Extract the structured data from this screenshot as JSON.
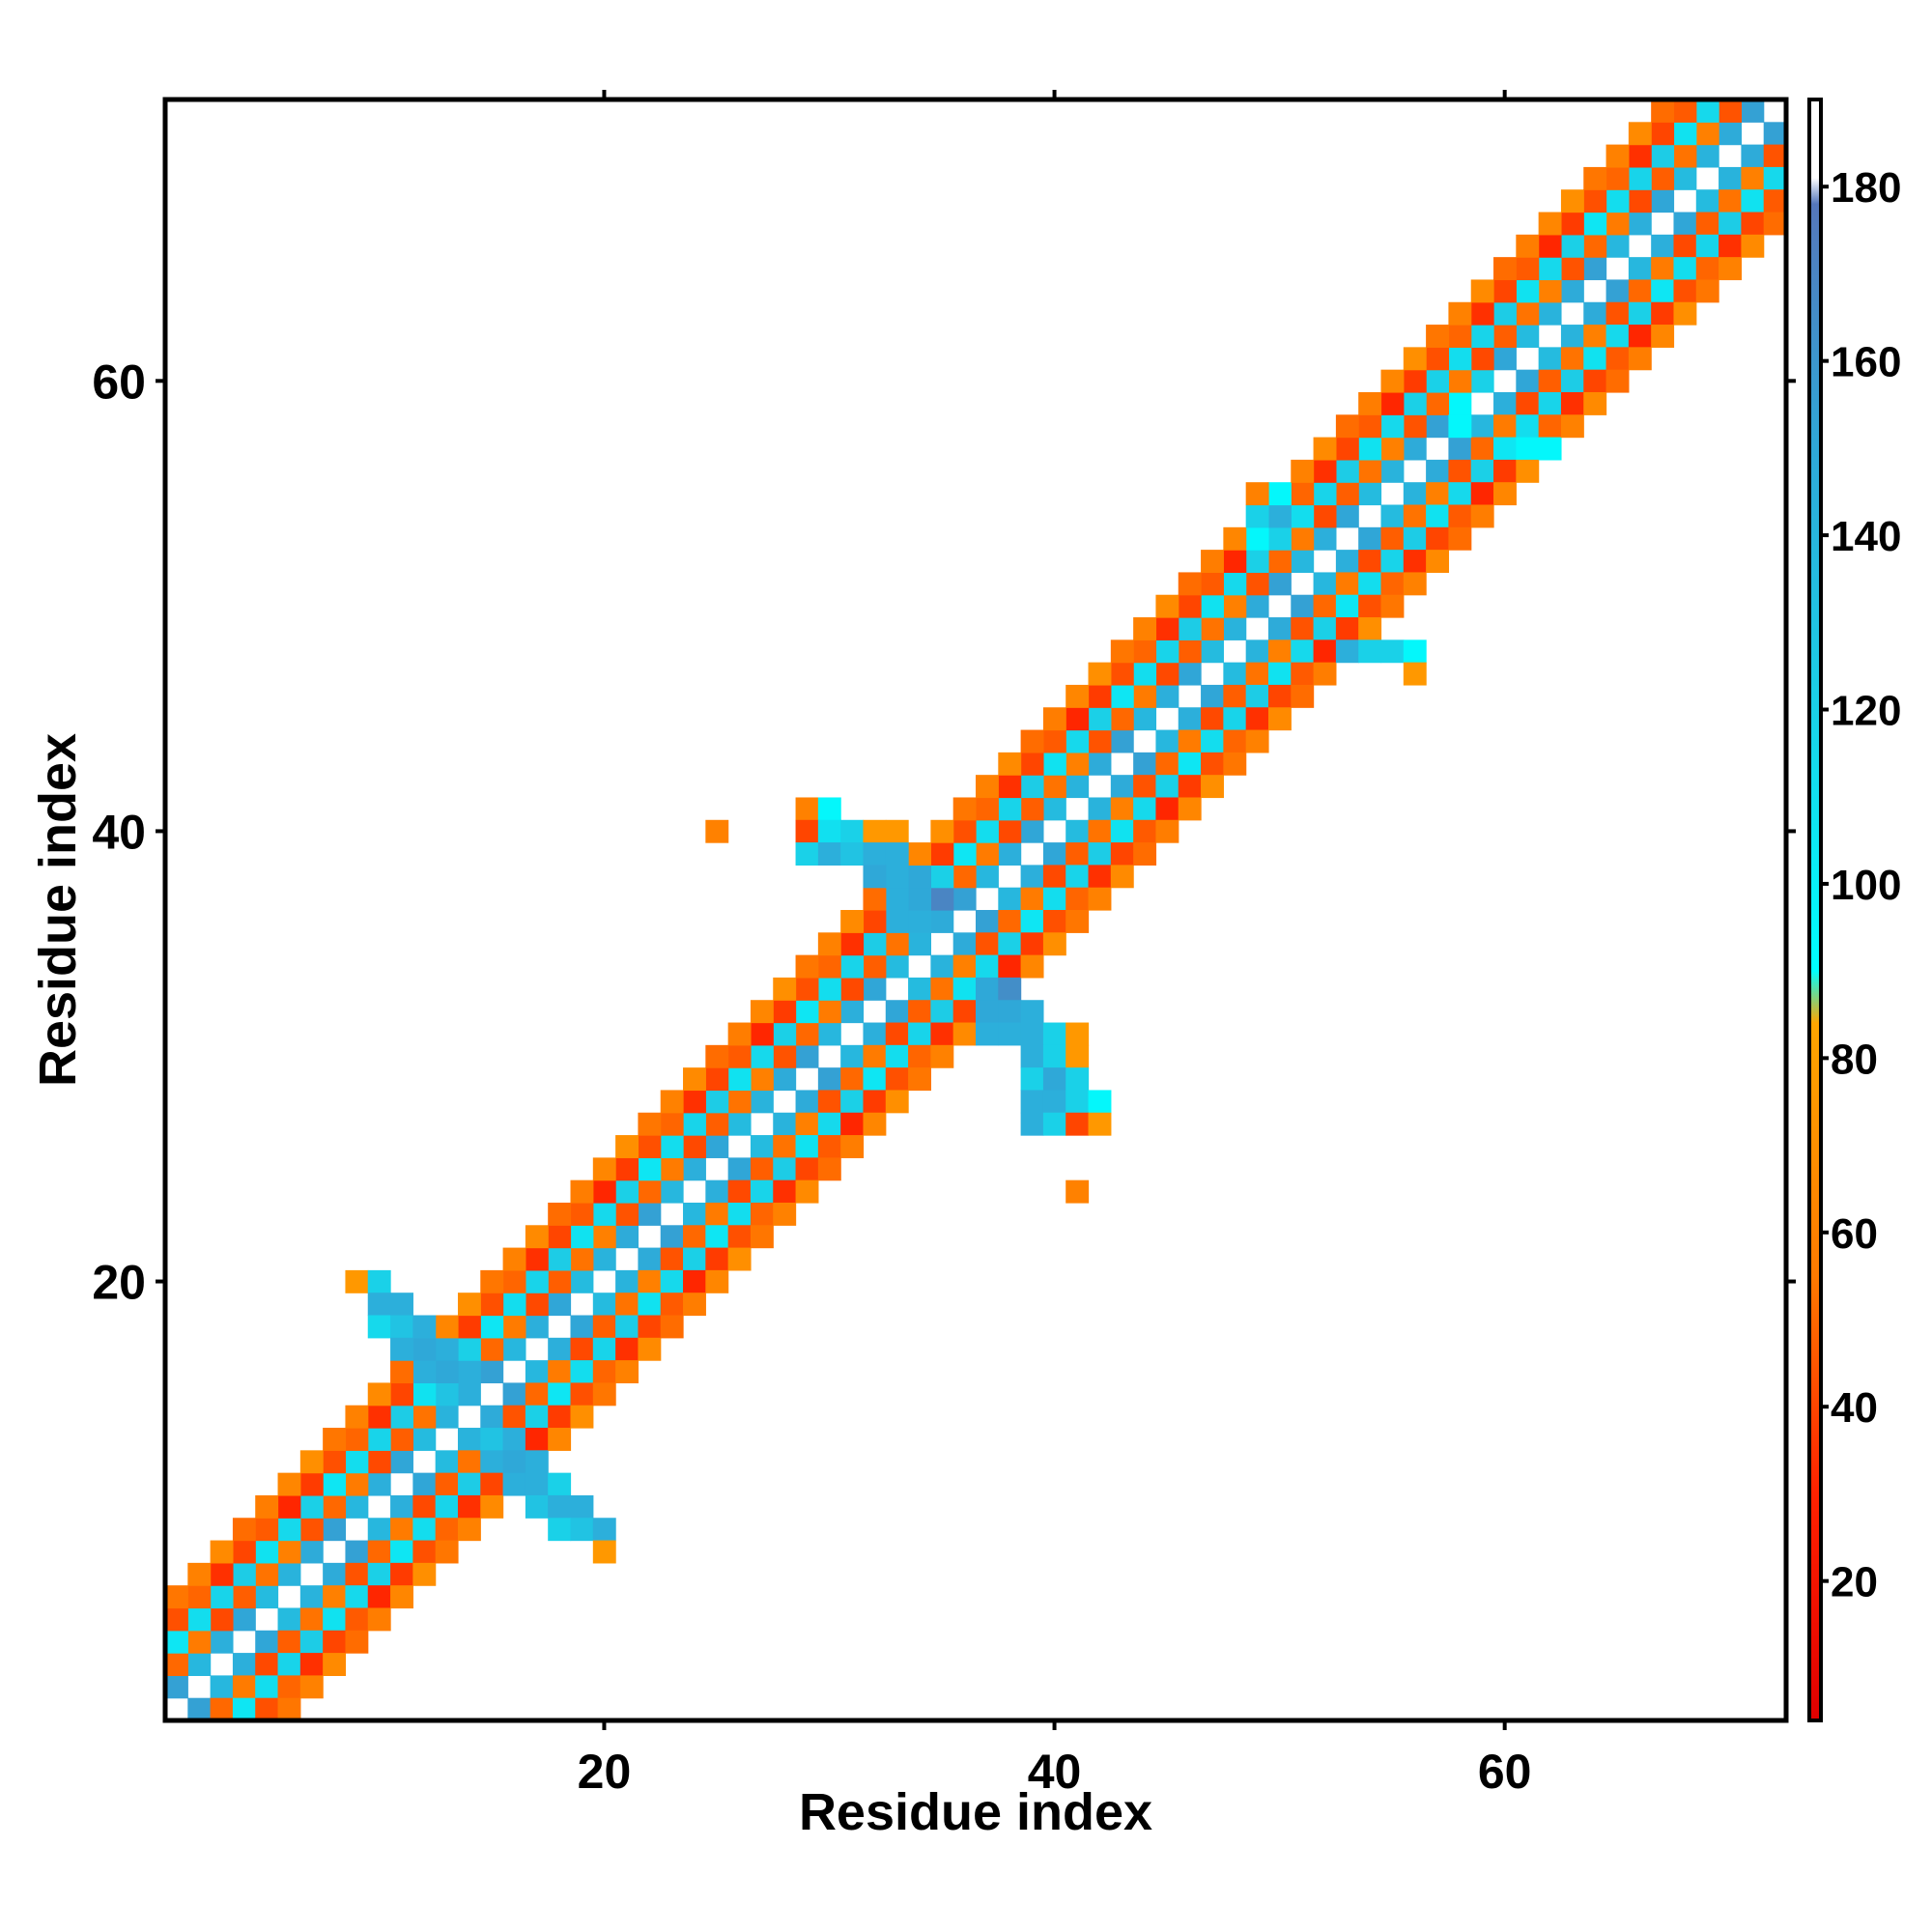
{
  "chart_data": {
    "type": "heatmap",
    "title": "",
    "xlabel": "Residue index",
    "ylabel": "Residue index",
    "xlim": [
      0.5,
      72.5
    ],
    "ylim": [
      0.5,
      72.5
    ],
    "x_ticks": [
      20,
      40,
      60
    ],
    "y_ticks": [
      20,
      40,
      60
    ],
    "x_tick_labels": [
      "20",
      "40",
      "60"
    ],
    "y_tick_labels": [
      "20",
      "40",
      "60"
    ],
    "grid": false,
    "colorbar": {
      "range": [
        4,
        190
      ],
      "ticks": [
        20,
        40,
        60,
        80,
        100,
        120,
        140,
        160,
        180
      ],
      "tick_labels": [
        "20",
        "40",
        "60",
        "80",
        "100",
        "120",
        "140",
        "160",
        "180"
      ],
      "stops": [
        {
          "value": 4,
          "color": "#e00000"
        },
        {
          "value": 30,
          "color": "#ff2200"
        },
        {
          "value": 55,
          "color": "#ff7a00"
        },
        {
          "value": 84,
          "color": "#ffa500"
        },
        {
          "value": 90,
          "color": "#00ffff"
        },
        {
          "value": 120,
          "color": "#1ad1e8"
        },
        {
          "value": 150,
          "color": "#2fa8d8"
        },
        {
          "value": 178,
          "color": "#5577bb"
        },
        {
          "value": 181,
          "color": "#ffffff"
        },
        {
          "value": 190,
          "color": "#ffffff"
        }
      ]
    },
    "color_scale": {
      "red": "#ff1a00",
      "orange": "#ff7f00",
      "amber": "#ffa000",
      "cyan": "#14f0f5",
      "sky": "#1ccfe6",
      "blue": "#3ab0dc",
      "steel": "#5090cc"
    },
    "diagonal_bands": [
      {
        "from": 1,
        "to": 72,
        "offset": 1,
        "value": 145,
        "class": "cyan"
      },
      {
        "from": 1,
        "to": 72,
        "offset": 2,
        "value": 50,
        "class": "orange"
      },
      {
        "from": 1,
        "to": 72,
        "offset": 3,
        "value": 115,
        "class": "sky"
      },
      {
        "from": 1,
        "to": 72,
        "offset": 4,
        "value": 40,
        "class": "red"
      },
      {
        "from": 1,
        "to": 72,
        "offset": 5,
        "value": 60,
        "class": "orange"
      }
    ],
    "cells": [
      {
        "x": 9,
        "y": 20,
        "v": 75
      },
      {
        "x": 10,
        "y": 20,
        "v": 120
      },
      {
        "x": 10,
        "y": 19,
        "v": 145
      },
      {
        "x": 11,
        "y": 19,
        "v": 145
      },
      {
        "x": 10,
        "y": 18,
        "v": 115
      },
      {
        "x": 11,
        "y": 18,
        "v": 130
      },
      {
        "x": 12,
        "y": 18,
        "v": 145
      },
      {
        "x": 11,
        "y": 17,
        "v": 145
      },
      {
        "x": 12,
        "y": 17,
        "v": 150
      },
      {
        "x": 13,
        "y": 17,
        "v": 145
      },
      {
        "x": 12,
        "y": 16,
        "v": 145
      },
      {
        "x": 13,
        "y": 16,
        "v": 150
      },
      {
        "x": 14,
        "y": 16,
        "v": 145
      },
      {
        "x": 13,
        "y": 15,
        "v": 130
      },
      {
        "x": 14,
        "y": 15,
        "v": 145
      },
      {
        "x": 15,
        "y": 13,
        "v": 130
      },
      {
        "x": 16,
        "y": 13,
        "v": 145
      },
      {
        "x": 15,
        "y": 12,
        "v": 145
      },
      {
        "x": 16,
        "y": 12,
        "v": 150
      },
      {
        "x": 17,
        "y": 12,
        "v": 145
      },
      {
        "x": 16,
        "y": 11,
        "v": 145
      },
      {
        "x": 17,
        "y": 11,
        "v": 145
      },
      {
        "x": 18,
        "y": 11,
        "v": 120
      },
      {
        "x": 17,
        "y": 10,
        "v": 130
      },
      {
        "x": 18,
        "y": 10,
        "v": 145
      },
      {
        "x": 19,
        "y": 10,
        "v": 145
      },
      {
        "x": 18,
        "y": 9,
        "v": 120
      },
      {
        "x": 19,
        "y": 9,
        "v": 130
      },
      {
        "x": 20,
        "y": 9,
        "v": 145
      },
      {
        "x": 20,
        "y": 8,
        "v": 75
      },
      {
        "x": 29,
        "y": 41,
        "v": 60
      },
      {
        "x": 30,
        "y": 41,
        "v": 95
      },
      {
        "x": 29,
        "y": 40,
        "v": 40
      },
      {
        "x": 30,
        "y": 40,
        "v": 110
      },
      {
        "x": 31,
        "y": 40,
        "v": 120
      },
      {
        "x": 32,
        "y": 40,
        "v": 75
      },
      {
        "x": 33,
        "y": 40,
        "v": 75
      },
      {
        "x": 29,
        "y": 39,
        "v": 120
      },
      {
        "x": 30,
        "y": 39,
        "v": 145
      },
      {
        "x": 31,
        "y": 39,
        "v": 130
      },
      {
        "x": 32,
        "y": 39,
        "v": 145
      },
      {
        "x": 33,
        "y": 39,
        "v": 145
      },
      {
        "x": 32,
        "y": 38,
        "v": 150
      },
      {
        "x": 33,
        "y": 38,
        "v": 145
      },
      {
        "x": 34,
        "y": 38,
        "v": 150
      },
      {
        "x": 33,
        "y": 37,
        "v": 145
      },
      {
        "x": 34,
        "y": 37,
        "v": 150
      },
      {
        "x": 35,
        "y": 37,
        "v": 170
      },
      {
        "x": 33,
        "y": 36,
        "v": 145
      },
      {
        "x": 34,
        "y": 36,
        "v": 145
      },
      {
        "x": 37,
        "y": 33,
        "v": 150
      },
      {
        "x": 38,
        "y": 33,
        "v": 165
      },
      {
        "x": 37,
        "y": 32,
        "v": 150
      },
      {
        "x": 38,
        "y": 32,
        "v": 150
      },
      {
        "x": 39,
        "y": 32,
        "v": 145
      },
      {
        "x": 37,
        "y": 31,
        "v": 145
      },
      {
        "x": 38,
        "y": 31,
        "v": 145
      },
      {
        "x": 39,
        "y": 31,
        "v": 145
      },
      {
        "x": 40,
        "y": 31,
        "v": 120
      },
      {
        "x": 41,
        "y": 31,
        "v": 75
      },
      {
        "x": 39,
        "y": 30,
        "v": 145
      },
      {
        "x": 40,
        "y": 30,
        "v": 120
      },
      {
        "x": 41,
        "y": 30,
        "v": 75
      },
      {
        "x": 39,
        "y": 29,
        "v": 120
      },
      {
        "x": 40,
        "y": 29,
        "v": 150
      },
      {
        "x": 41,
        "y": 29,
        "v": 120
      },
      {
        "x": 39,
        "y": 28,
        "v": 145
      },
      {
        "x": 40,
        "y": 28,
        "v": 145
      },
      {
        "x": 41,
        "y": 28,
        "v": 120
      },
      {
        "x": 42,
        "y": 28,
        "v": 95
      },
      {
        "x": 39,
        "y": 27,
        "v": 145
      },
      {
        "x": 40,
        "y": 27,
        "v": 120
      },
      {
        "x": 41,
        "y": 27,
        "v": 40
      },
      {
        "x": 42,
        "y": 27,
        "v": 75
      },
      {
        "x": 41,
        "y": 24,
        "v": 60
      },
      {
        "x": 25,
        "y": 40,
        "v": 60
      },
      {
        "x": 49,
        "y": 55,
        "v": 60
      },
      {
        "x": 50,
        "y": 55,
        "v": 95
      },
      {
        "x": 49,
        "y": 54,
        "v": 120
      },
      {
        "x": 50,
        "y": 54,
        "v": 145
      },
      {
        "x": 49,
        "y": 53,
        "v": 95
      },
      {
        "x": 50,
        "y": 53,
        "v": 120
      },
      {
        "x": 53,
        "y": 48,
        "v": 145
      },
      {
        "x": 54,
        "y": 48,
        "v": 120
      },
      {
        "x": 55,
        "y": 48,
        "v": 120
      },
      {
        "x": 56,
        "y": 48,
        "v": 95
      },
      {
        "x": 56,
        "y": 47,
        "v": 75
      },
      {
        "x": 58,
        "y": 58,
        "v": 95
      },
      {
        "x": 58,
        "y": 59,
        "v": 95
      },
      {
        "x": 57,
        "y": 60,
        "v": 120
      },
      {
        "x": 59,
        "y": 60,
        "v": 120
      },
      {
        "x": 61,
        "y": 57,
        "v": 95
      },
      {
        "x": 62,
        "y": 57,
        "v": 95
      }
    ]
  }
}
